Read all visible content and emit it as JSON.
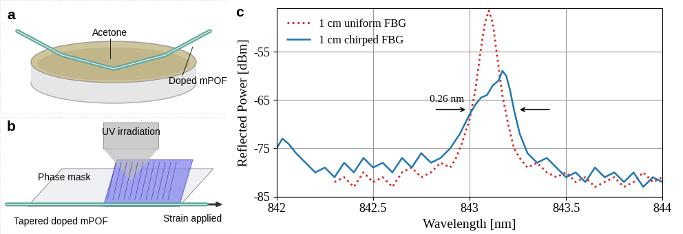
{
  "panels": [
    {
      "label": "a",
      "texts": {
        "liquid": "Acetone",
        "fiber": "Doped mPOF"
      }
    },
    {
      "label": "b",
      "texts": {
        "light": "UV irradiation",
        "mask": "Phase mask",
        "fiber": "Tapered doped mPOF",
        "strain": "Strain applied"
      }
    }
  ],
  "chart_data": {
    "panel_label": "c",
    "type": "line",
    "x_label": "Wavelength [nm]",
    "y_label": "Reflected Power [dBm]",
    "xlim": [
      842,
      844
    ],
    "xticks": [
      842,
      842.5,
      843,
      843.5,
      844
    ],
    "ylim": [
      -85,
      -46
    ],
    "yticks": [
      -85,
      -75,
      -65,
      -55
    ],
    "grid": true,
    "legend": "upper left",
    "series": [
      {
        "name": "1 cm uniform FBG",
        "color": "#d62728",
        "line_style": "dotted",
        "x": [
          842.3,
          842.35,
          842.4,
          842.45,
          842.5,
          842.55,
          842.6,
          842.65,
          842.7,
          842.75,
          842.8,
          842.85,
          842.9,
          842.93,
          842.96,
          843.0,
          843.03,
          843.06,
          843.08,
          843.1,
          843.12,
          843.14,
          843.17,
          843.2,
          843.23,
          843.26,
          843.3,
          843.35,
          843.4,
          843.45,
          843.5,
          843.55,
          843.6,
          843.65,
          843.7,
          843.75,
          843.8,
          843.85,
          843.9,
          843.95,
          844.0
        ],
        "values": [
          -82,
          -81,
          -83,
          -80,
          -82,
          -81,
          -83,
          -80,
          -79,
          -81,
          -80,
          -78,
          -79,
          -77,
          -74,
          -69,
          -63,
          -54,
          -49,
          -46.5,
          -49,
          -55,
          -64,
          -70,
          -75,
          -77,
          -79,
          -78,
          -80,
          -81,
          -80,
          -82,
          -81,
          -83,
          -82,
          -81,
          -83,
          -82,
          -80,
          -82,
          -81
        ]
      },
      {
        "name": "1 cm chirped FBG",
        "color": "#1f77b4",
        "line_style": "solid",
        "x": [
          842.0,
          842.03,
          842.06,
          842.1,
          842.15,
          842.2,
          842.25,
          842.3,
          842.35,
          842.4,
          842.45,
          842.5,
          842.55,
          842.6,
          842.65,
          842.7,
          842.75,
          842.8,
          842.85,
          842.9,
          842.95,
          843.0,
          843.03,
          843.06,
          843.09,
          843.12,
          843.15,
          843.17,
          843.19,
          843.21,
          843.23,
          843.26,
          843.3,
          843.35,
          843.4,
          843.45,
          843.5,
          843.55,
          843.6,
          843.65,
          843.7,
          843.75,
          843.8,
          843.85,
          843.9,
          843.95,
          844.0
        ],
        "values": [
          -75,
          -73,
          -74,
          -76,
          -78,
          -80,
          -79,
          -81,
          -78,
          -80,
          -77,
          -79,
          -78,
          -80,
          -77,
          -79,
          -76,
          -78,
          -77,
          -75,
          -72,
          -68,
          -66,
          -64.5,
          -64,
          -62,
          -61,
          -59,
          -60,
          -63,
          -67,
          -72,
          -76,
          -78,
          -77,
          -79,
          -81,
          -80,
          -82,
          -79,
          -81,
          -80,
          -82,
          -80,
          -83,
          -81,
          -82
        ]
      }
    ],
    "annotations": [
      {
        "text": "0.26 nm",
        "span": [
          842.99,
          843.25
        ],
        "y": -67
      }
    ]
  }
}
